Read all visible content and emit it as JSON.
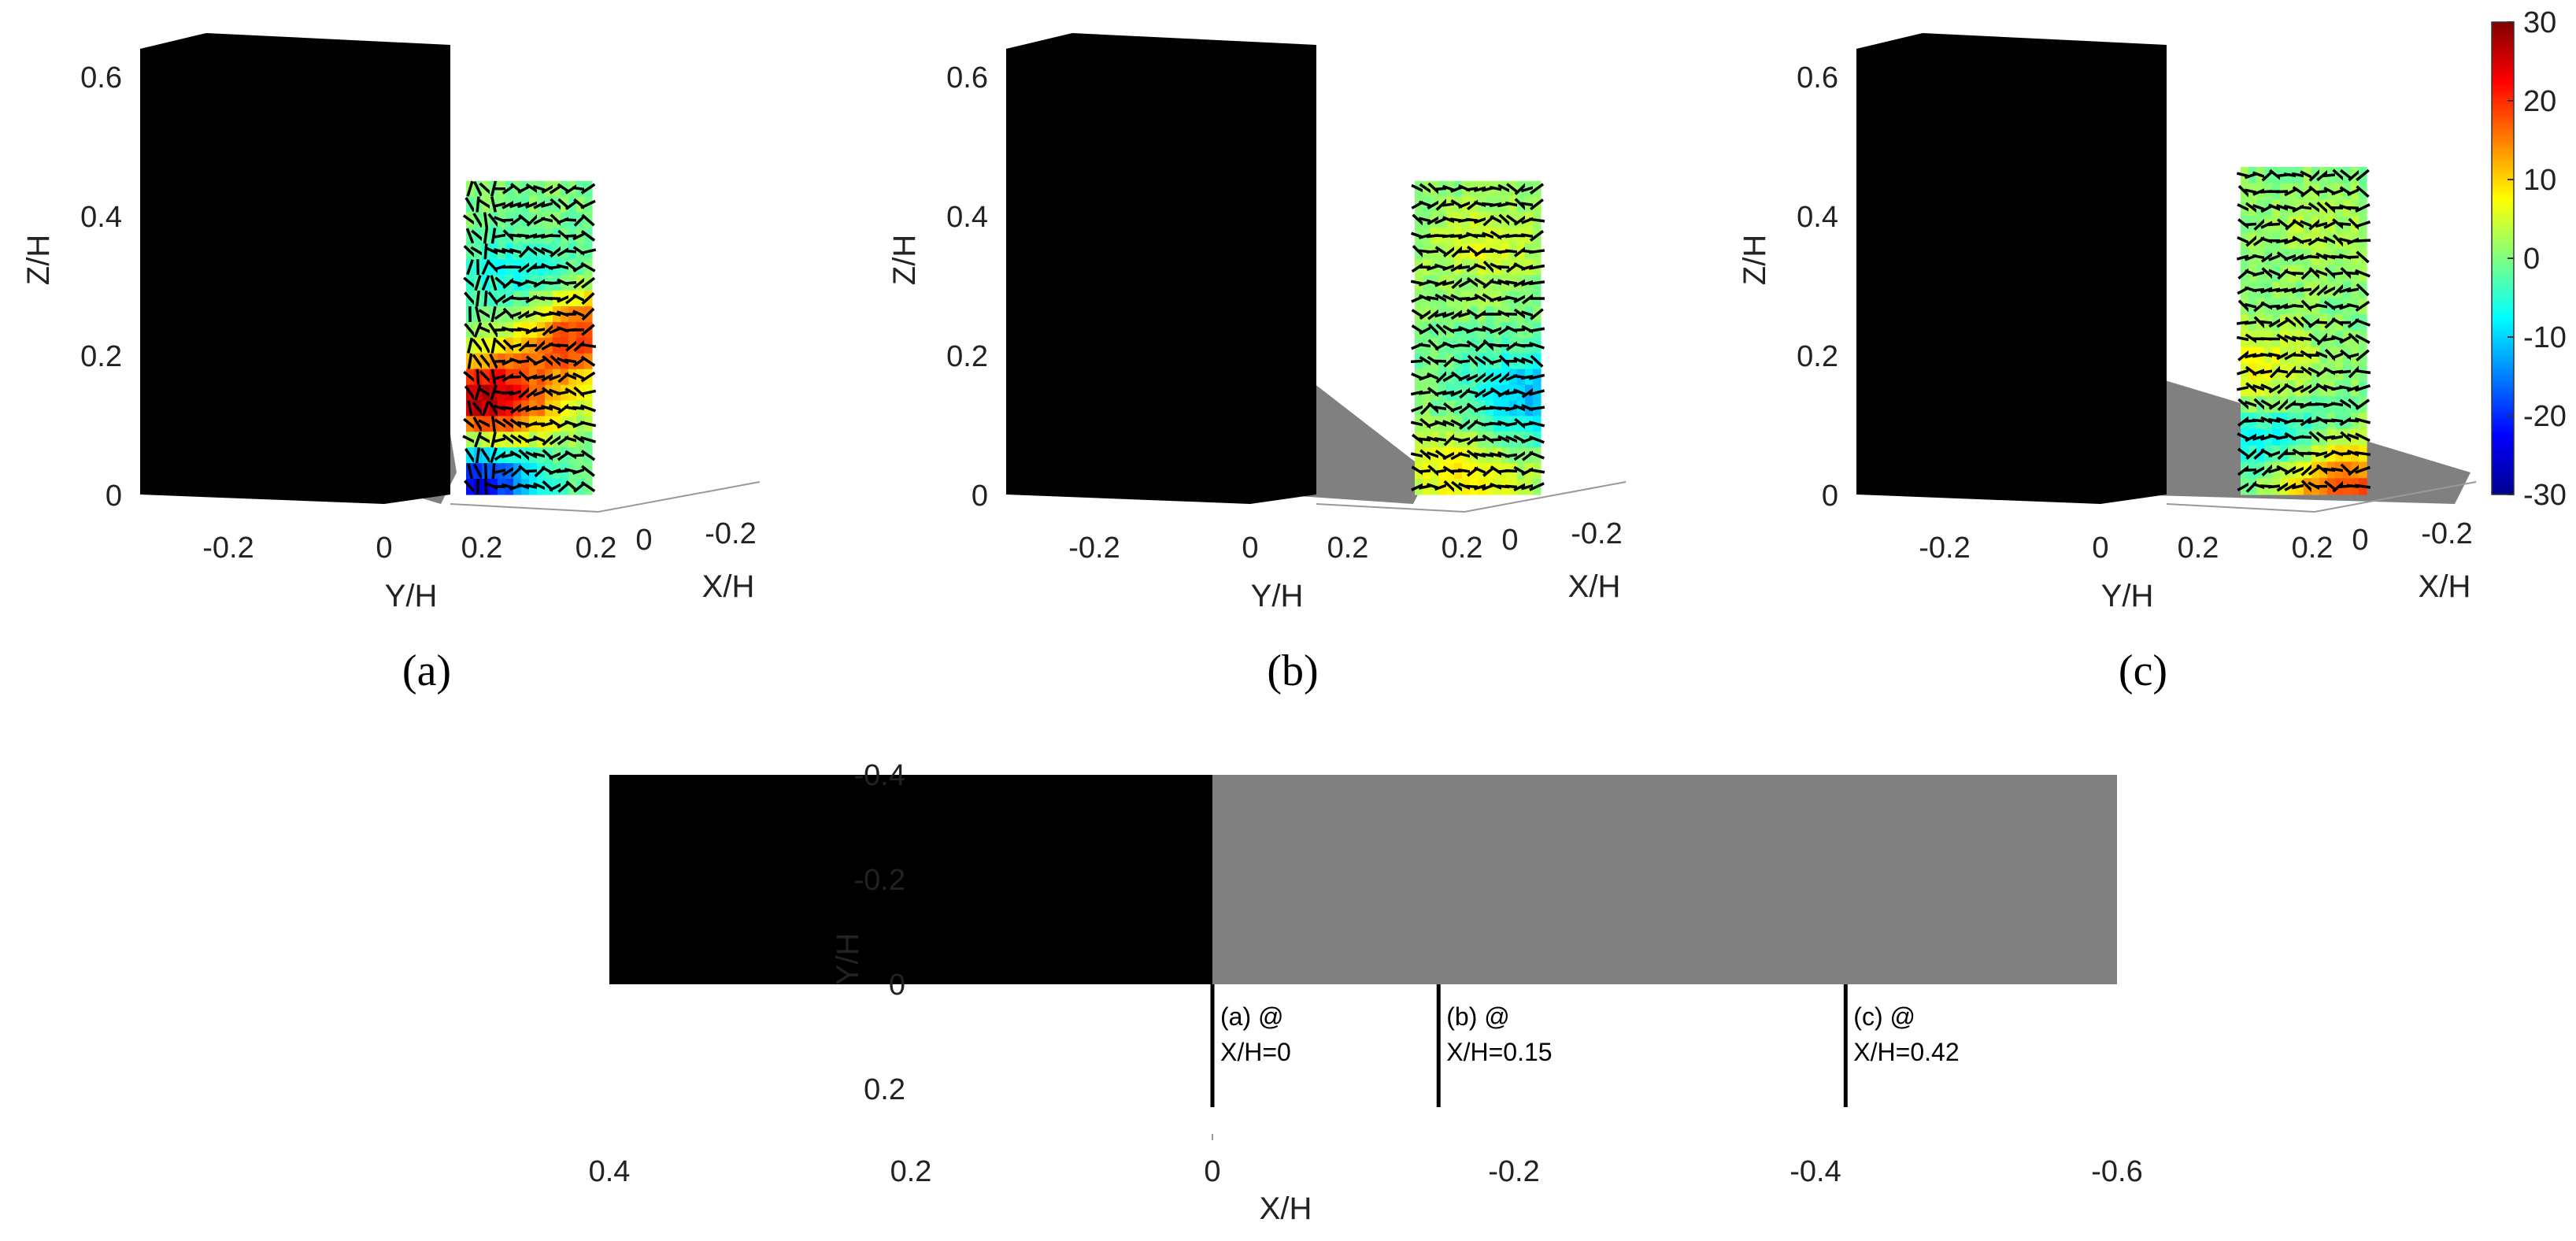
{
  "chart_data": [
    {
      "panel": "(a)",
      "type": "heatmap",
      "zlabel": "Z/H",
      "ylabel": "Y/H",
      "xlabel": "X/H",
      "z_ticks": [
        "0",
        "0.2",
        "0.4",
        "0.6"
      ],
      "y_ticks": [
        "-0.2",
        "0",
        "0.2"
      ],
      "x_ticks": [
        "0.2",
        "0",
        "-0.2"
      ],
      "zlim": [
        0,
        0.65
      ],
      "plane_xh": 0,
      "field_range_zh": [
        0,
        0.45
      ],
      "hotspots": [
        {
          "z": 0.13,
          "y_frac": 0.15,
          "value": 28
        },
        {
          "z": 0.23,
          "y_frac": 0.9,
          "value": 20
        },
        {
          "z": 0.02,
          "y_frac": 0.05,
          "value": -25
        },
        {
          "z": 0.3,
          "y_frac": 0.45,
          "value": -8
        }
      ]
    },
    {
      "panel": "(b)",
      "type": "heatmap",
      "zlabel": "Z/H",
      "ylabel": "Y/H",
      "xlabel": "X/H",
      "z_ticks": [
        "0",
        "0.2",
        "0.4",
        "0.6"
      ],
      "y_ticks": [
        "-0.2",
        "0",
        "0.2"
      ],
      "x_ticks": [
        "0.2",
        "0",
        "-0.2"
      ],
      "zlim": [
        0,
        0.65
      ],
      "plane_xh": 0.15,
      "field_range_zh": [
        0,
        0.45
      ],
      "hotspots": [
        {
          "z": 0.03,
          "y_frac": 0.4,
          "value": 8
        },
        {
          "z": 0.14,
          "y_frac": 0.95,
          "value": -12
        },
        {
          "z": 0.36,
          "y_frac": 0.55,
          "value": 5
        }
      ]
    },
    {
      "panel": "(c)",
      "type": "heatmap",
      "zlabel": "Z/H",
      "ylabel": "Y/H",
      "xlabel": "X/H",
      "z_ticks": [
        "0",
        "0.2",
        "0.4",
        "0.6"
      ],
      "y_ticks": [
        "-0.2",
        "0",
        "0.2"
      ],
      "x_ticks": [
        "0.2",
        "0",
        "-0.2"
      ],
      "zlim": [
        0,
        0.65
      ],
      "plane_xh": 0.42,
      "field_range_zh": [
        0,
        0.47
      ],
      "hotspots": [
        {
          "z": 0.17,
          "y_frac": 0.12,
          "value": 8
        },
        {
          "z": 0.08,
          "y_frac": 0.3,
          "value": -10
        },
        {
          "z": 0.38,
          "y_frac": 0.6,
          "value": 3
        },
        {
          "z": 0.01,
          "y_frac": 0.8,
          "value": 20
        }
      ]
    },
    {
      "panel": "plan",
      "type": "diagram",
      "xlabel": "X/H",
      "ylabel": "Y/H",
      "x_ticks": [
        "0.4",
        "0.2",
        "0",
        "-0.2",
        "-0.4",
        "-0.6"
      ],
      "y_ticks": [
        "-0.4",
        "-0.2",
        "0",
        "0.2"
      ],
      "xlim": [
        0.4,
        -0.6
      ],
      "ylim": [
        -0.4,
        0.2
      ],
      "building_x": [
        0.4,
        0
      ],
      "shadow_x": [
        0,
        -0.6
      ],
      "y_range": [
        -0.4,
        0
      ],
      "sections": [
        {
          "x": 0,
          "line1": "(a) @",
          "line2": "X/H=0"
        },
        {
          "x": -0.15,
          "line1": "(b) @",
          "line2": "X/H=0.15"
        },
        {
          "x": -0.42,
          "line1": "(c) @",
          "line2": "X/H=0.42"
        }
      ]
    }
  ],
  "colorbar": {
    "ticks": [
      "30",
      "20",
      "10",
      "0",
      "-10",
      "-20",
      "-30"
    ],
    "min": -30,
    "max": 30
  },
  "panel_labels": [
    "(a)",
    "(b)",
    "(c)"
  ],
  "colors": {
    "building": "#000000",
    "shadow": "#808080"
  }
}
